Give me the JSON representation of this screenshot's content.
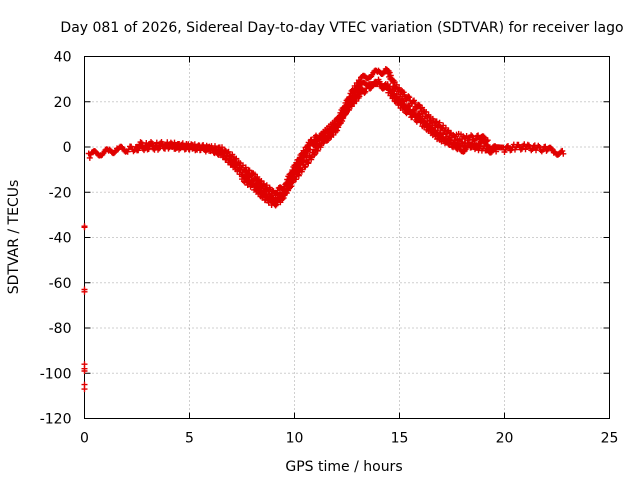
{
  "chart_data": {
    "type": "scatter",
    "title": "Day 081 of 2026, Sidereal Day-to-day VTEC variation (SDTVAR) for receiver lago",
    "xlabel": "GPS time / hours",
    "ylabel": "SDTVAR / TECUs",
    "xlim": [
      0,
      25
    ],
    "ylim": [
      -120,
      40
    ],
    "xticks": [
      0,
      5,
      10,
      15,
      20,
      25
    ],
    "yticks": [
      -120,
      -100,
      -80,
      -60,
      -40,
      -20,
      0,
      20,
      40
    ],
    "grid": true,
    "marker": "plus",
    "color": "#e00000",
    "series": [
      {
        "name": "SDTVAR",
        "bands": [
          {
            "offset": 0,
            "points": [
              [
                0.2,
                -4
              ],
              [
                0.4,
                -3
              ],
              [
                0.8,
                -2.5
              ],
              [
                1.2,
                -2
              ],
              [
                1.6,
                -1
              ],
              [
                2,
                -1
              ],
              [
                2.5,
                -0.5
              ],
              [
                3,
                0
              ],
              [
                3.5,
                0
              ],
              [
                4,
                0.5
              ],
              [
                4.5,
                0
              ],
              [
                5,
                0
              ],
              [
                5.5,
                -0.5
              ],
              [
                6,
                -1
              ],
              [
                6.5,
                -3
              ],
              [
                7,
                -7
              ],
              [
                7.5,
                -12
              ],
              [
                8,
                -15
              ],
              [
                8.5,
                -20
              ],
              [
                9,
                -23
              ],
              [
                9.3,
                -22
              ],
              [
                9.6,
                -19
              ],
              [
                10,
                -12
              ],
              [
                10.4,
                -5
              ],
              [
                10.8,
                1
              ],
              [
                11.2,
                3
              ],
              [
                11.6,
                4
              ],
              [
                12,
                8
              ],
              [
                12.4,
                15
              ],
              [
                12.8,
                22
              ],
              [
                13.2,
                27
              ],
              [
                13.6,
                29
              ],
              [
                14,
                29
              ],
              [
                14.4,
                27
              ],
              [
                14.8,
                23
              ],
              [
                15.2,
                19
              ],
              [
                15.6,
                16
              ],
              [
                16,
                13
              ],
              [
                16.5,
                9
              ],
              [
                17,
                5
              ],
              [
                17.5,
                1
              ],
              [
                18,
                -1
              ],
              [
                18.4,
                0
              ],
              [
                18.8,
                2
              ],
              [
                19.2,
                1
              ],
              [
                19.6,
                -1
              ],
              [
                20,
                -1
              ],
              [
                20.5,
                0
              ],
              [
                21,
                0
              ],
              [
                21.5,
                -0.5
              ],
              [
                22,
                -1
              ],
              [
                22.4,
                -2
              ],
              [
                22.8,
                -3
              ]
            ]
          },
          {
            "offset": 3,
            "points": [
              [
                2.5,
                1
              ],
              [
                3,
                1
              ],
              [
                3.5,
                1
              ],
              [
                4,
                1
              ],
              [
                6.5,
                -1
              ],
              [
                7,
                -4
              ],
              [
                7.5,
                -9
              ],
              [
                8,
                -12
              ],
              [
                8.5,
                -17
              ],
              [
                9,
                -20
              ],
              [
                9.3,
                -19
              ],
              [
                9.6,
                -16
              ],
              [
                10,
                -9
              ],
              [
                10.4,
                -3
              ],
              [
                10.8,
                2.5
              ],
              [
                11.2,
                5
              ],
              [
                12,
                11
              ],
              [
                12.4,
                18
              ],
              [
                12.8,
                25
              ],
              [
                13.2,
                30
              ],
              [
                13.6,
                32
              ],
              [
                14,
                33
              ],
              [
                14.4,
                34
              ],
              [
                14.8,
                27
              ],
              [
                15.2,
                23
              ],
              [
                15.6,
                20
              ],
              [
                16,
                17
              ],
              [
                16.5,
                12
              ],
              [
                17,
                9
              ],
              [
                17.5,
                5
              ],
              [
                18.3,
                4
              ],
              [
                18.8,
                4
              ],
              [
                19.2,
                3
              ]
            ]
          },
          {
            "offset": -2,
            "points": [
              [
                7.5,
                -14
              ],
              [
                8,
                -17
              ],
              [
                8.5,
                -22
              ],
              [
                9,
                -25
              ],
              [
                9.3,
                -24
              ],
              [
                10,
                -14
              ],
              [
                12.8,
                20
              ],
              [
                13.2,
                24
              ],
              [
                13.6,
                27
              ],
              [
                14,
                28
              ],
              [
                14.4,
                26
              ],
              [
                14.8,
                21
              ],
              [
                15.2,
                17
              ],
              [
                15.6,
                14
              ],
              [
                16,
                11
              ],
              [
                17,
                3
              ],
              [
                19.2,
                -1
              ],
              [
                19.6,
                -2
              ]
            ]
          }
        ],
        "outliers": [
          [
            0.0,
            -35
          ],
          [
            0.0,
            -35.5
          ],
          [
            0.0,
            -63
          ],
          [
            0.0,
            -64
          ],
          [
            0.0,
            -96
          ],
          [
            0.0,
            -98
          ],
          [
            0.0,
            -99
          ],
          [
            0.0,
            -105
          ],
          [
            0.0,
            -107
          ]
        ]
      }
    ]
  }
}
